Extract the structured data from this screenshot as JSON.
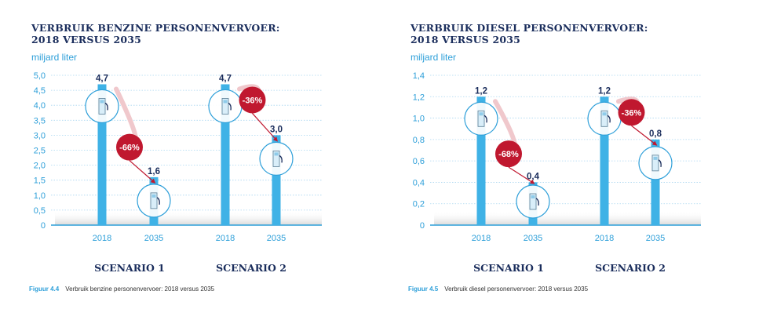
{
  "charts": [
    {
      "title_line1": "VERBRUIK BENZINE PERSONENVERVOER:",
      "title_line2": "2018 VERSUS 2035",
      "unit": "miljard liter",
      "figure_label": "Figuur 4.4",
      "figure_caption": "Verbruik benzine personenvervoer: 2018 versus 2035"
    },
    {
      "title_line1": "VERBRUIK DIESEL PERSONENVERVOER:",
      "title_line2": "2018 VERSUS 2035",
      "unit": "miljard liter",
      "figure_label": "Figuur 4.5",
      "figure_caption": "Verbruik diesel personenvervoer: 2018 versus 2035"
    }
  ],
  "colors": {
    "bar": "#3fb2e6",
    "title": "#1a2d5c",
    "badge": "#c0182f",
    "axis": "#2d9fd9",
    "grid": "#a9d6f0"
  },
  "chart_data": [
    {
      "type": "bar",
      "title": "VERBRUIK BENZINE PERSONENVERVOER: 2018 VERSUS 2035",
      "ylabel": "miljard liter",
      "ylim": [
        0,
        5
      ],
      "yticks": [
        0,
        0.5,
        1,
        1.5,
        2,
        2.5,
        3,
        3.5,
        4,
        4.5,
        5
      ],
      "ytick_labels": [
        "0",
        "0,5",
        "1,0",
        "1,5",
        "2,0",
        "2,5",
        "3,0",
        "3,5",
        "4,0",
        "4,5",
        "5,0"
      ],
      "grid": true,
      "groups": [
        {
          "name": "SCENARIO 1",
          "categories": [
            "2018",
            "2035"
          ],
          "values": [
            4.7,
            1.6
          ],
          "value_labels": [
            "4,7",
            "1,6"
          ],
          "change_label": "-66%"
        },
        {
          "name": "SCENARIO 2",
          "categories": [
            "2018",
            "2035"
          ],
          "values": [
            4.7,
            3.0
          ],
          "value_labels": [
            "4,7",
            "3,0"
          ],
          "change_label": "-36%"
        }
      ]
    },
    {
      "type": "bar",
      "title": "VERBRUIK DIESEL PERSONENVERVOER: 2018 VERSUS 2035",
      "ylabel": "miljard liter",
      "ylim": [
        0,
        1.4
      ],
      "yticks": [
        0,
        0.2,
        0.4,
        0.6,
        0.8,
        1.0,
        1.2,
        1.4
      ],
      "ytick_labels": [
        "0",
        "0,2",
        "0,4",
        "0,6",
        "0,8",
        "1,0",
        "1,2",
        "1,4"
      ],
      "grid": true,
      "groups": [
        {
          "name": "SCENARIO 1",
          "categories": [
            "2018",
            "2035"
          ],
          "values": [
            1.2,
            0.4
          ],
          "value_labels": [
            "1,2",
            "0,4"
          ],
          "change_label": "-68%"
        },
        {
          "name": "SCENARIO 2",
          "categories": [
            "2018",
            "2035"
          ],
          "values": [
            1.2,
            0.8
          ],
          "value_labels": [
            "1,2",
            "0,8"
          ],
          "change_label": "-36%"
        }
      ]
    }
  ]
}
